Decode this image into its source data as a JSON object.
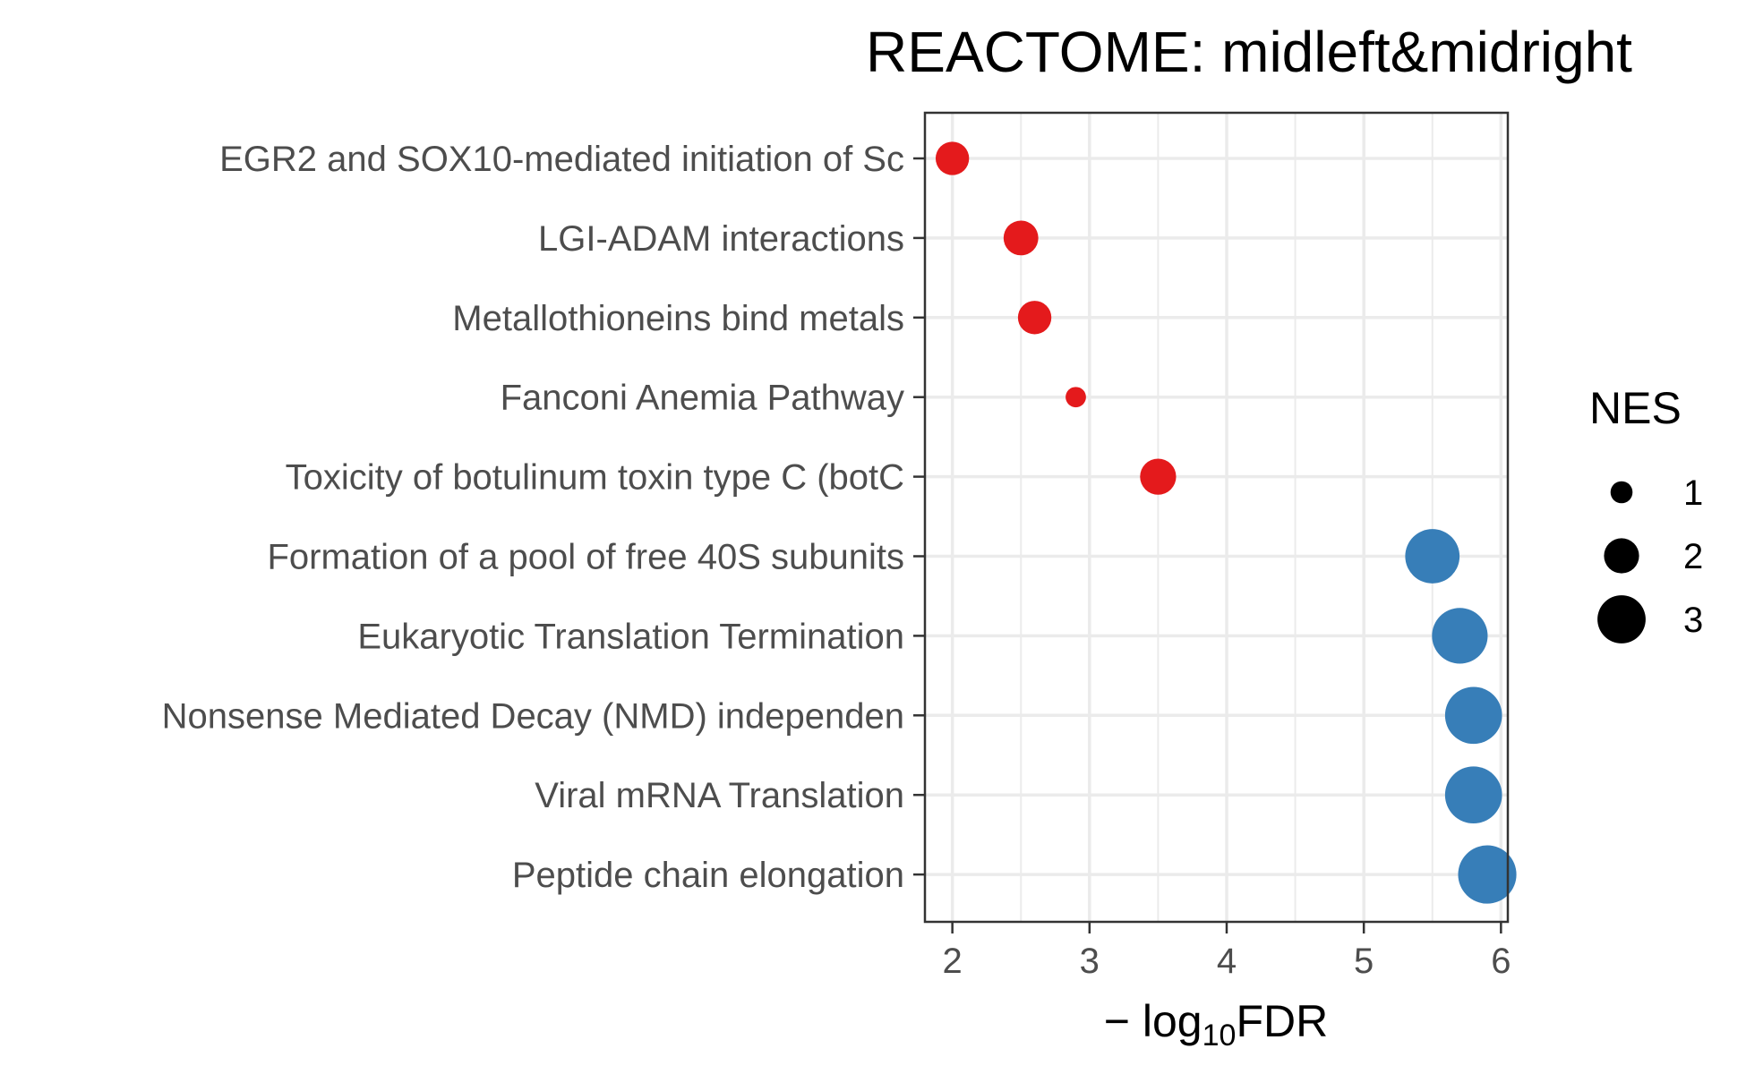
{
  "chart_data": {
    "type": "scatter",
    "title": "REACTOME: midleft&midright",
    "xlabel": {
      "prefix": "− log",
      "subscript": "10",
      "suffix": "FDR"
    },
    "ylabel": "",
    "xlim": [
      1.8,
      6.05
    ],
    "x_ticks": [
      2,
      3,
      4,
      5,
      6
    ],
    "grid": true,
    "categories": [
      "EGR2 and SOX10-mediated initiation of Sc",
      "LGI-ADAM interactions",
      "Metallothioneins bind metals",
      "Fanconi Anemia Pathway",
      "Toxicity of botulinum toxin type C (botC",
      "Formation of a pool of free 40S subunits",
      "Eukaryotic Translation Termination",
      "Nonsense Mediated Decay (NMD) independen",
      "Viral mRNA Translation",
      "Peptide chain elongation"
    ],
    "points": [
      {
        "x": 2.0,
        "nes": 1.6,
        "color": "#e41a1c"
      },
      {
        "x": 2.5,
        "nes": 1.7,
        "color": "#e41a1c"
      },
      {
        "x": 2.6,
        "nes": 1.6,
        "color": "#e41a1c"
      },
      {
        "x": 2.9,
        "nes": 0.6,
        "color": "#e41a1c"
      },
      {
        "x": 3.5,
        "nes": 1.8,
        "color": "#e41a1c"
      },
      {
        "x": 5.5,
        "nes": 3.2,
        "color": "#377eb8"
      },
      {
        "x": 5.7,
        "nes": 3.3,
        "color": "#377eb8"
      },
      {
        "x": 5.8,
        "nes": 3.4,
        "color": "#377eb8"
      },
      {
        "x": 5.8,
        "nes": 3.4,
        "color": "#377eb8"
      },
      {
        "x": 5.9,
        "nes": 3.5,
        "color": "#377eb8"
      }
    ],
    "legend": {
      "title": "NES",
      "placement": "right",
      "entries": [
        {
          "label": "1",
          "nes": 1
        },
        {
          "label": "2",
          "nes": 2
        },
        {
          "label": "3",
          "nes": 3
        }
      ]
    },
    "colors": {
      "panel_border": "#333333",
      "grid": "#ebebeb",
      "tick": "#333333",
      "legend_key": "#000000"
    }
  }
}
